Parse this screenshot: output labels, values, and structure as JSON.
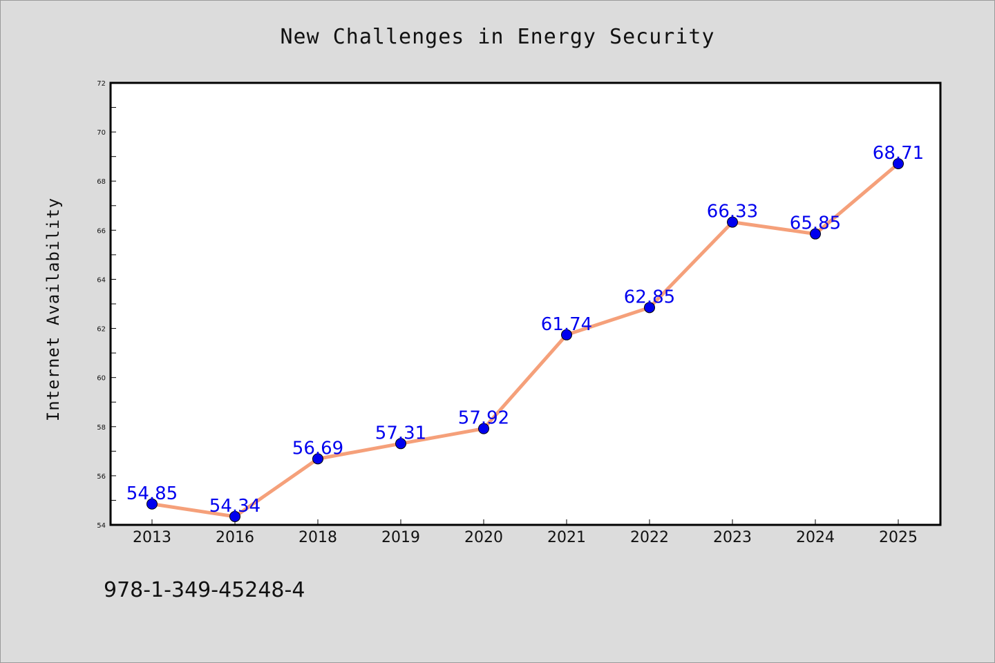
{
  "chart_data": {
    "type": "line",
    "title": "New Challenges in Energy Security",
    "xlabel": "",
    "ylabel": "Internet Availability",
    "categories": [
      "2013",
      "2016",
      "2018",
      "2019",
      "2020",
      "2021",
      "2022",
      "2023",
      "2024",
      "2025"
    ],
    "series": [
      {
        "values": [
          54.85,
          54.34,
          56.69,
          57.31,
          57.92,
          61.74,
          62.85,
          66.33,
          65.85,
          68.71
        ],
        "labels": [
          "54.85",
          "54.34",
          "56.69",
          "57.31",
          "57.92",
          "61.74",
          "62.85",
          "66.33",
          "65.85",
          "68.71"
        ],
        "line_color": "#f5a07a",
        "marker_color": "#0000ee"
      }
    ],
    "ylim": [
      54,
      72
    ],
    "yticks": [
      "54",
      "56",
      "58",
      "60",
      "62",
      "64",
      "66",
      "68",
      "70",
      "72"
    ],
    "grid": false,
    "legend": "none"
  },
  "footer": {
    "isbn": "978-1-349-45248-4"
  },
  "colors": {
    "background": "#dcdcdc",
    "plot_background": "#ffffff",
    "line": "#f5a07a",
    "marker": "#0000ee",
    "label": "#0000ee"
  }
}
